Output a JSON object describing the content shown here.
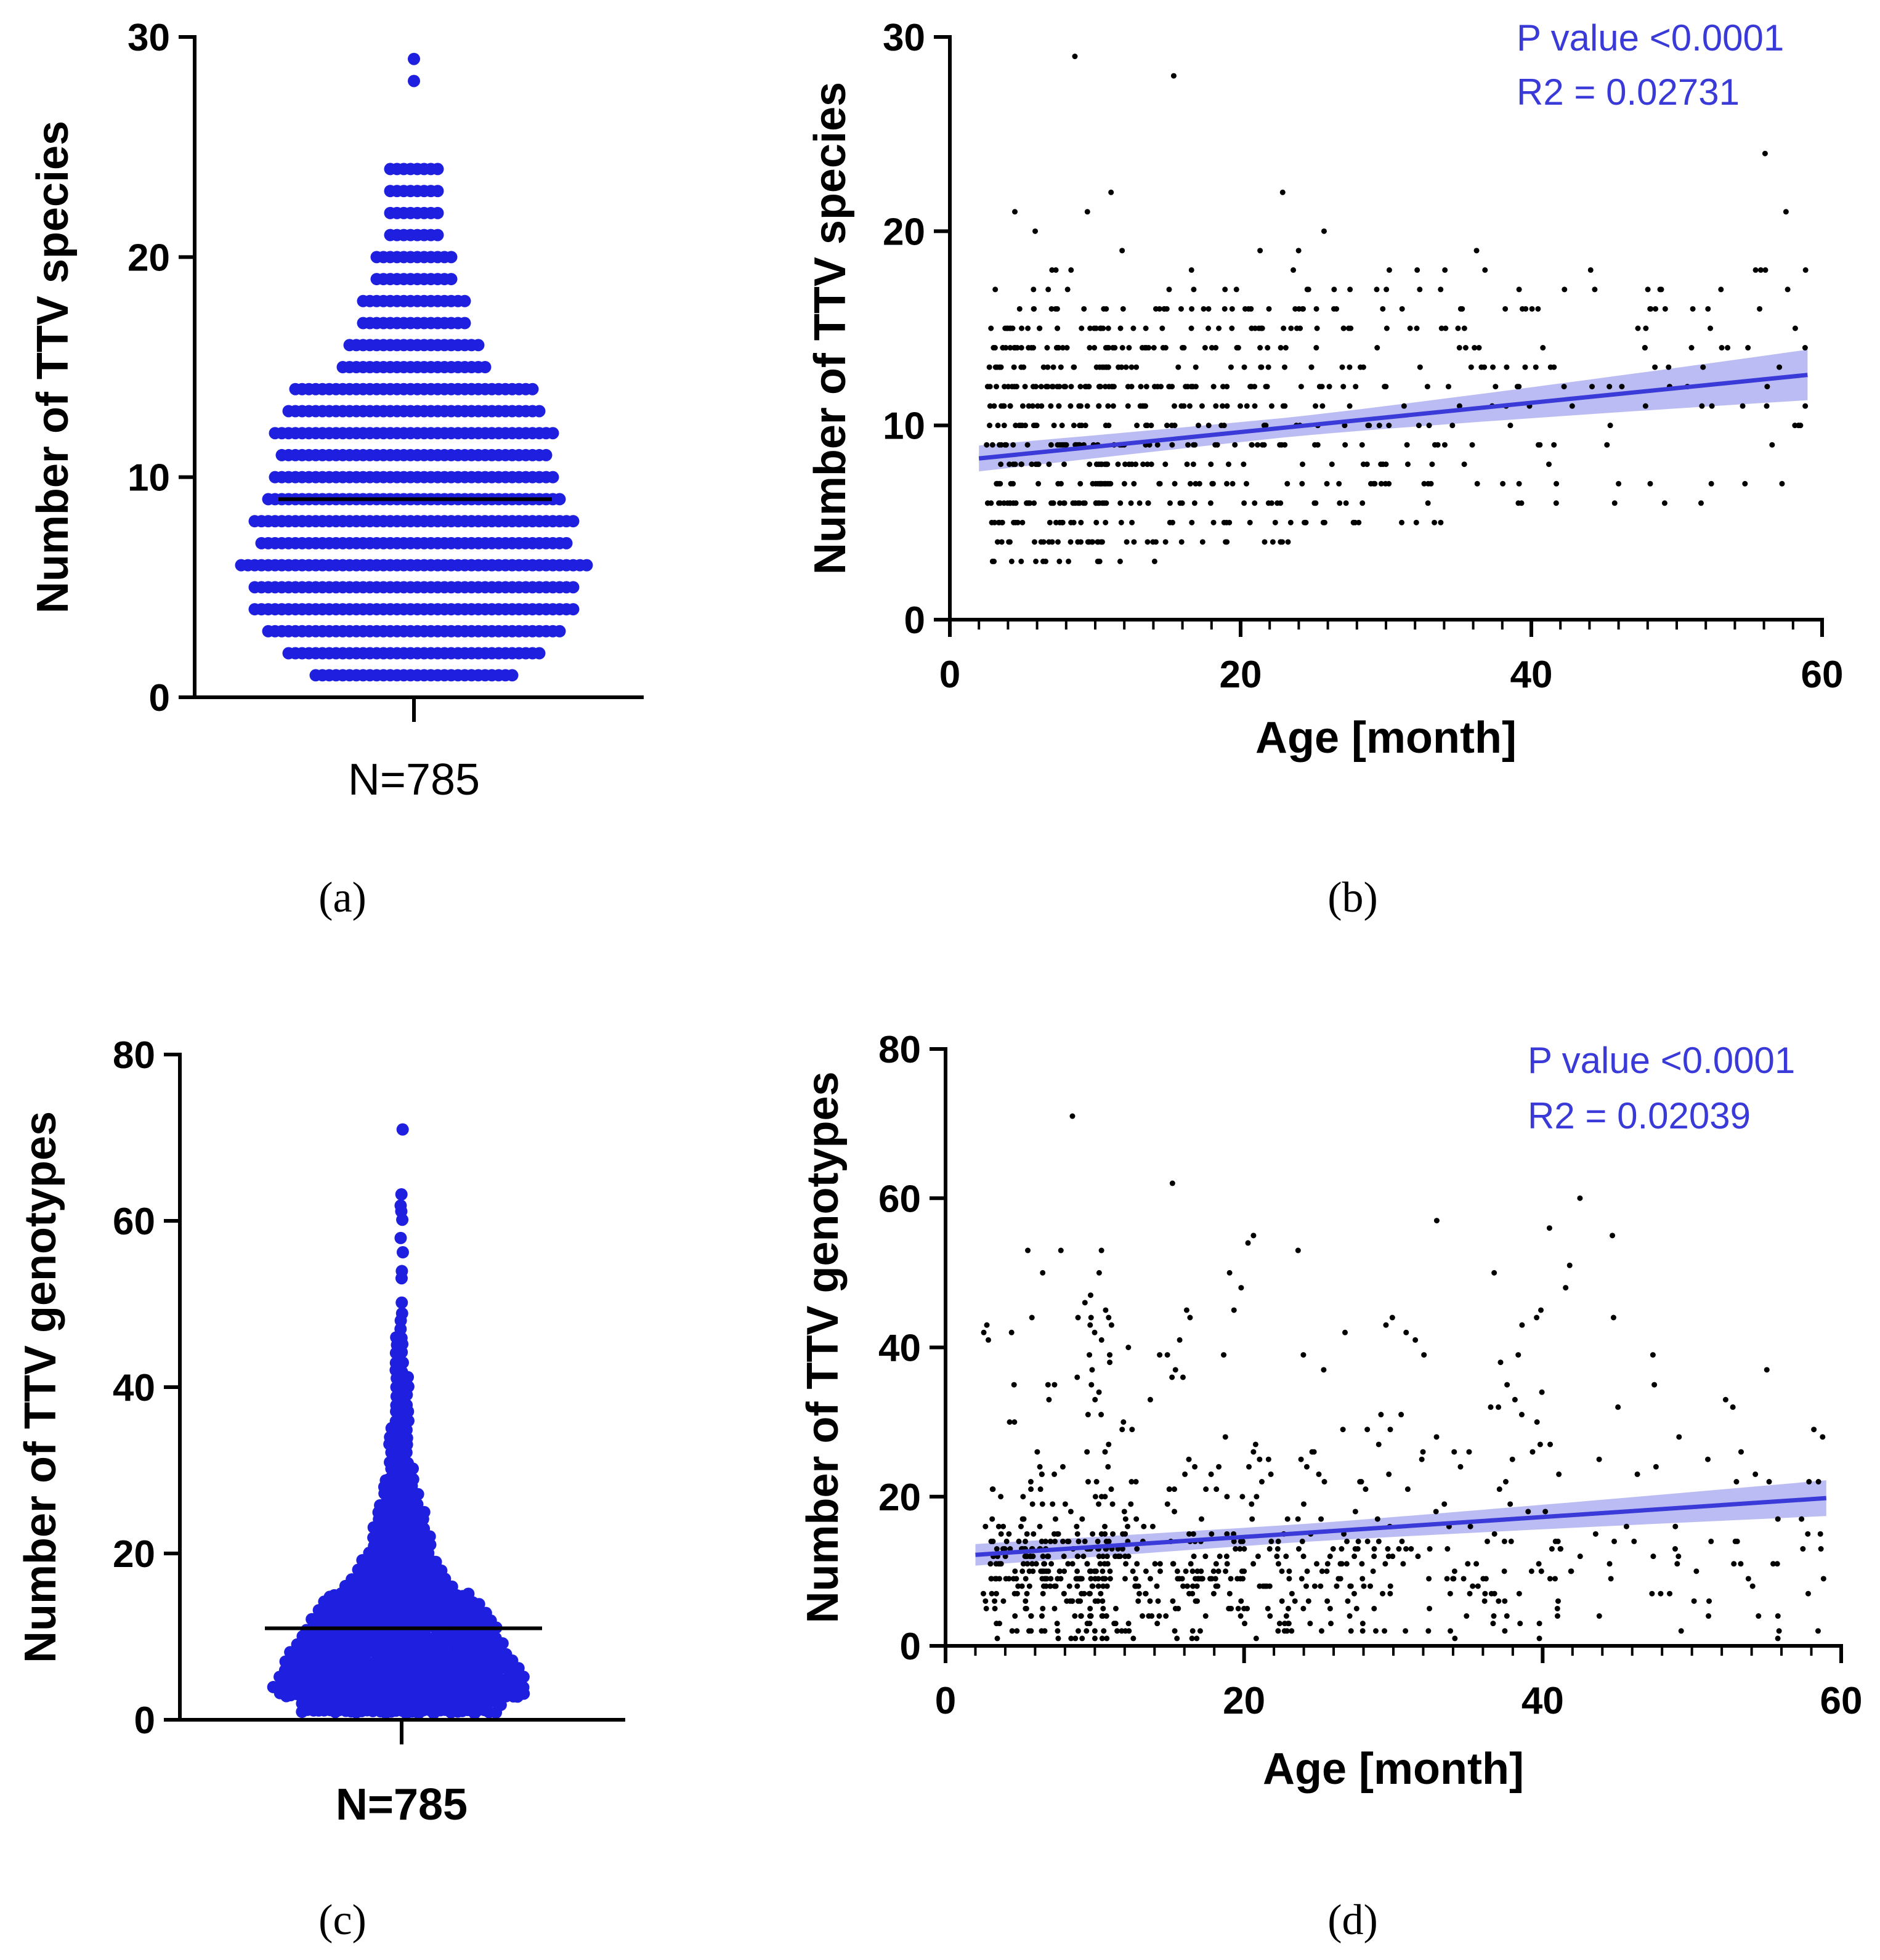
{
  "figure": {
    "point_color": "#1f1fe0",
    "trend_color": "#3a3ad8",
    "band_color": "#a6a6f0",
    "scatter_point_color": "#000000"
  },
  "chart_data": [
    {
      "id": "a",
      "type": "scatter",
      "subtype": "dot-plot",
      "panel_label": "(a)",
      "ylabel": "Number of TTV species",
      "ylim": [
        0,
        30
      ],
      "yticks": [
        0,
        10,
        20,
        30
      ],
      "category": "N=785",
      "n": 785,
      "mean": 9,
      "levels": [
        {
          "y": 1,
          "count": 30
        },
        {
          "y": 2,
          "count": 38
        },
        {
          "y": 3,
          "count": 44
        },
        {
          "y": 4,
          "count": 48
        },
        {
          "y": 5,
          "count": 48
        },
        {
          "y": 6,
          "count": 52
        },
        {
          "y": 7,
          "count": 46
        },
        {
          "y": 8,
          "count": 48
        },
        {
          "y": 9,
          "count": 44
        },
        {
          "y": 10,
          "count": 42
        },
        {
          "y": 11,
          "count": 40
        },
        {
          "y": 12,
          "count": 42
        },
        {
          "y": 13,
          "count": 38
        },
        {
          "y": 14,
          "count": 36
        },
        {
          "y": 15,
          "count": 22
        },
        {
          "y": 16,
          "count": 20
        },
        {
          "y": 17,
          "count": 16
        },
        {
          "y": 18,
          "count": 16
        },
        {
          "y": 19,
          "count": 12
        },
        {
          "y": 20,
          "count": 12
        },
        {
          "y": 21,
          "count": 8
        },
        {
          "y": 22,
          "count": 8
        },
        {
          "y": 23,
          "count": 8
        },
        {
          "y": 24,
          "count": 8
        },
        {
          "y": 28,
          "count": 1
        },
        {
          "y": 29,
          "count": 1
        }
      ]
    },
    {
      "id": "b",
      "type": "scatter",
      "panel_label": "(b)",
      "xlabel": "Age [month]",
      "ylabel": "Number of TTV species",
      "xlim": [
        0,
        60
      ],
      "ylim": [
        0,
        30
      ],
      "xticks": [
        0,
        20,
        40,
        60
      ],
      "yticks": [
        0,
        10,
        20,
        30
      ],
      "annotation_p": "P value <0.0001",
      "annotation_r2": "R2 = 0.02731",
      "n_points": 785,
      "max_points": [
        {
          "x": 8.6,
          "y": 29
        },
        {
          "x": 15.4,
          "y": 28
        }
      ],
      "regression": {
        "x": [
          2,
          59
        ],
        "y": [
          8.3,
          12.6
        ],
        "ci_halfwidth_start": 0.5,
        "ci_halfwidth_end": 1.3
      }
    },
    {
      "id": "c",
      "type": "scatter",
      "subtype": "dot-plot",
      "panel_label": "(c)",
      "ylabel": "Number of TTV genotypes",
      "ylim": [
        0,
        80
      ],
      "yticks": [
        0,
        20,
        40,
        60,
        80
      ],
      "category": "N=785",
      "n": 785,
      "mean": 11,
      "max_value": 71
    },
    {
      "id": "d",
      "type": "scatter",
      "panel_label": "(d)",
      "xlabel": "Age [month]",
      "ylabel": "Number of TTV genotypes",
      "xlim": [
        0,
        60
      ],
      "ylim": [
        0,
        80
      ],
      "xticks": [
        0,
        20,
        40,
        60
      ],
      "yticks": [
        0,
        20,
        40,
        60,
        80
      ],
      "annotation_p": "P value <0.0001",
      "annotation_r2": "R2 = 0.02039",
      "n_points": 785,
      "max_points": [
        {
          "x": 8.5,
          "y": 71
        },
        {
          "x": 42.5,
          "y": 60
        },
        {
          "x": 15.2,
          "y": 62
        }
      ],
      "regression": {
        "x": [
          2,
          59
        ],
        "y": [
          12.2,
          19.8
        ],
        "ci_halfwidth_start": 1.2,
        "ci_halfwidth_end": 2.4
      }
    }
  ]
}
